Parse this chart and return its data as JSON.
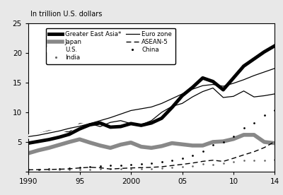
{
  "title": "In trillion U.S. dollars",
  "xlim": [
    1990,
    2014
  ],
  "ylim": [
    0,
    25
  ],
  "yticks": [
    0,
    5,
    10,
    15,
    20,
    25
  ],
  "xticks": [
    1990,
    1995,
    2000,
    2005,
    2010,
    2014
  ],
  "xticklabels": [
    "1990",
    "95",
    "2000",
    "05",
    "10",
    "14"
  ],
  "years": [
    1990,
    1991,
    1992,
    1993,
    1994,
    1995,
    1996,
    1997,
    1998,
    1999,
    2000,
    2001,
    2002,
    2003,
    2004,
    2005,
    2006,
    2007,
    2008,
    2009,
    2010,
    2011,
    2012,
    2013,
    2014
  ],
  "greater_east_asia": [
    4.8,
    5.1,
    5.4,
    5.8,
    6.3,
    7.2,
    7.9,
    8.2,
    7.5,
    7.6,
    8.1,
    7.8,
    8.2,
    9.0,
    10.8,
    12.8,
    14.2,
    15.8,
    15.2,
    13.8,
    15.8,
    17.8,
    19.0,
    20.2,
    21.2
  ],
  "us": [
    5.9,
    6.15,
    6.5,
    6.85,
    7.3,
    7.65,
    8.1,
    8.6,
    9.1,
    9.7,
    10.3,
    10.6,
    10.9,
    11.5,
    12.3,
    13.1,
    13.9,
    14.5,
    14.7,
    14.4,
    14.9,
    15.5,
    16.2,
    16.8,
    17.4
  ],
  "euro_zone": [
    6.1,
    6.4,
    6.9,
    6.8,
    6.7,
    8.1,
    8.1,
    7.6,
    8.3,
    8.6,
    8.1,
    7.9,
    8.6,
    10.0,
    11.0,
    11.5,
    12.6,
    13.5,
    14.1,
    12.5,
    12.7,
    13.6,
    12.6,
    12.8,
    13.1
  ],
  "china": [
    0.35,
    0.38,
    0.43,
    0.5,
    0.56,
    0.73,
    0.86,
    0.96,
    1.0,
    1.08,
    1.21,
    1.34,
    1.47,
    1.66,
    1.94,
    2.29,
    2.75,
    3.49,
    4.52,
    4.99,
    5.93,
    7.32,
    8.23,
    9.49,
    10.4
  ],
  "japan": [
    3.1,
    3.6,
    4.0,
    4.5,
    5.0,
    5.45,
    4.9,
    4.4,
    4.0,
    4.55,
    4.9,
    4.2,
    4.0,
    4.3,
    4.8,
    4.6,
    4.4,
    4.4,
    5.0,
    5.1,
    5.5,
    6.2,
    6.2,
    5.0,
    4.8
  ],
  "india": [
    0.32,
    0.33,
    0.34,
    0.35,
    0.37,
    0.38,
    0.4,
    0.42,
    0.43,
    0.46,
    0.48,
    0.49,
    0.52,
    0.6,
    0.69,
    0.82,
    0.94,
    1.24,
    1.22,
    1.37,
    1.71,
    1.84,
    1.87,
    1.88,
    2.04
  ],
  "asean5": [
    0.3,
    0.33,
    0.36,
    0.4,
    0.46,
    0.62,
    0.73,
    0.65,
    0.43,
    0.53,
    0.62,
    0.67,
    0.72,
    0.82,
    1.02,
    1.22,
    1.44,
    1.73,
    1.92,
    1.72,
    2.25,
    2.82,
    3.35,
    4.05,
    5.05
  ],
  "bg_color": "#e8e8e8",
  "plot_bg": "#ffffff"
}
